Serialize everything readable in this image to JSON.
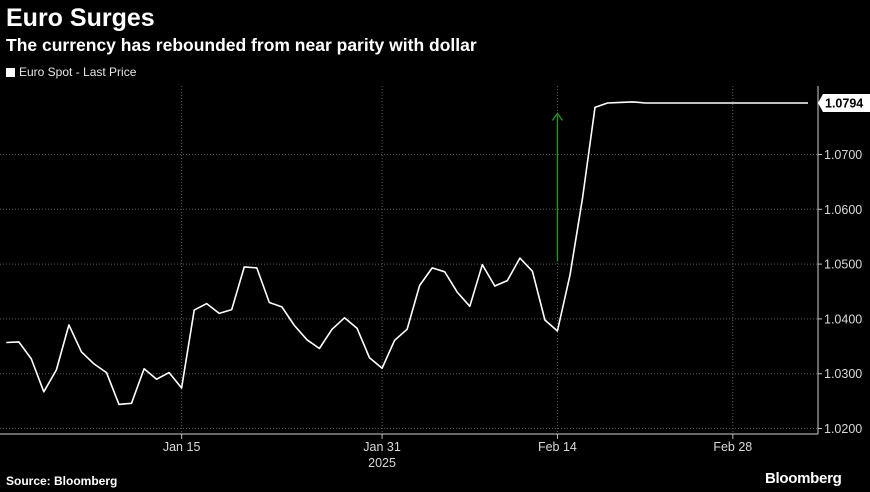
{
  "header": {
    "title": "Euro Surges",
    "subtitle": "The currency has rebounded from near parity with dollar"
  },
  "footer": {
    "source": "Source: Bloomberg",
    "brand": "Bloomberg"
  },
  "colors": {
    "background": "#000000",
    "line": "#ffffff",
    "grid": "#5a5a5a",
    "arrow": "#1a9e1a"
  },
  "chart_data": {
    "type": "line",
    "title": "Euro Surges",
    "subtitle": "The currency has rebounded from near parity with dollar",
    "xlabel": "",
    "ylabel": "",
    "grid": true,
    "grid_style": "dotted",
    "legend": "top-left",
    "x_tick_labels": [
      "Jan 15",
      "Jan 31",
      "Feb 14",
      "Feb 28"
    ],
    "x_tick_positions": [
      14,
      30,
      44,
      58
    ],
    "year_label": "2025",
    "year_label_under": "Jan 31",
    "xlim": [
      -0.5,
      64.8
    ],
    "ylim": [
      1.019,
      1.0825
    ],
    "y_ticks": [
      1.02,
      1.03,
      1.04,
      1.05,
      1.06,
      1.07
    ],
    "y_tick_labels": [
      "1.0200",
      "1.0300",
      "1.0400",
      "1.0500",
      "1.0600",
      "1.0700"
    ],
    "last_value_label": "1.0794",
    "series": [
      {
        "name": "Euro Spot - Last Price",
        "x": [
          0,
          1,
          2,
          3,
          4,
          5,
          6,
          7,
          8,
          9,
          10,
          11,
          12,
          13,
          14,
          15,
          16,
          17,
          18,
          19,
          20,
          21,
          22,
          23,
          24,
          25,
          26,
          27,
          28,
          29,
          30,
          31,
          32,
          33,
          34,
          35,
          36,
          37,
          38,
          39,
          40,
          41,
          42,
          43,
          44,
          45,
          46,
          47,
          48,
          49,
          50,
          51,
          52,
          53,
          54,
          55,
          56,
          57,
          58,
          59,
          60,
          61,
          62,
          63,
          64
        ],
        "values": [
          1.0357,
          1.0358,
          1.0327,
          1.0267,
          1.0307,
          1.0389,
          1.034,
          1.0318,
          1.0302,
          1.0244,
          1.0246,
          1.0309,
          1.029,
          1.0302,
          1.0274,
          1.0416,
          1.0428,
          1.041,
          1.0417,
          1.0495,
          1.0493,
          1.043,
          1.0422,
          1.0388,
          1.0362,
          1.0346,
          1.0381,
          1.0402,
          1.0383,
          1.0329,
          1.031,
          1.0361,
          1.0381,
          1.0461,
          1.0493,
          1.0486,
          1.0449,
          1.0423,
          1.0499,
          1.046,
          1.047,
          1.0511,
          1.0487,
          1.0398,
          1.0378,
          1.048,
          1.062,
          1.0786,
          1.0794,
          1.0795,
          1.0796,
          1.0794,
          1.0794,
          1.0794,
          1.0794,
          1.0794,
          1.0794,
          1.0794,
          1.0794,
          1.0794,
          1.0794,
          1.0794,
          1.0794,
          1.0794,
          1.0794
        ]
      }
    ],
    "annotations": [
      {
        "type": "arrow",
        "color": "#1a9e1a",
        "x": 44,
        "y_start": 1.0505,
        "y_end": 1.0775
      }
    ]
  }
}
